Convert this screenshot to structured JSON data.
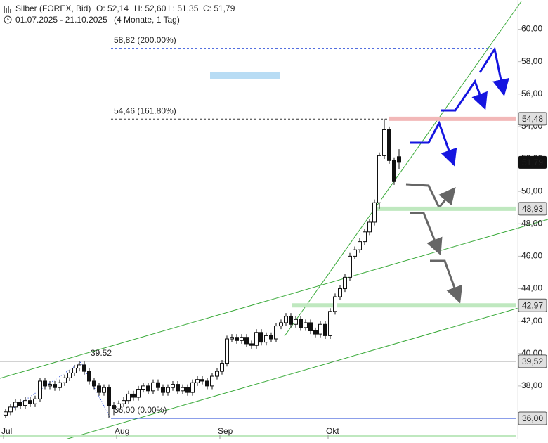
{
  "chart_data": {
    "type": "candlestick",
    "header": {
      "title": "Silber (FOREX, Bid)",
      "open": "O: 52,14",
      "high": "H: 52,60",
      "low": "L: 51,35",
      "close": "C: 51,79",
      "range": "01.07.2025 - 21.10.2025",
      "span": "(4 Monate, 1 Tag)"
    },
    "categories": [
      "Jul",
      null,
      null,
      null,
      null,
      null,
      null,
      null,
      null,
      null,
      null,
      null,
      null,
      null,
      null,
      null,
      null,
      null,
      null,
      null,
      null,
      null,
      null,
      "Aug",
      null,
      null,
      null,
      null,
      null,
      null,
      null,
      null,
      null,
      null,
      null,
      null,
      null,
      null,
      null,
      null,
      null,
      null,
      null,
      null,
      "Sep",
      null,
      null,
      null,
      null,
      null,
      null,
      null,
      null,
      null,
      null,
      null,
      null,
      null,
      null,
      null,
      null,
      null,
      null,
      null,
      null,
      null,
      "Okt",
      null,
      null,
      null,
      null,
      null,
      null,
      null,
      null,
      null,
      null,
      null,
      null,
      null,
      null
    ],
    "open": [
      36.2,
      36.4,
      36.7,
      37.0,
      36.8,
      37.1,
      36.9,
      37.2,
      38.3,
      38.0,
      38.1,
      37.9,
      38.2,
      38.5,
      38.8,
      39.1,
      39.3,
      38.9,
      38.3,
      38.0,
      37.6,
      37.9,
      36.8,
      36.6,
      36.9,
      37.1,
      37.5,
      37.3,
      37.8,
      38.0,
      37.7,
      38.2,
      37.9,
      37.6,
      37.9,
      38.1,
      37.7,
      37.9,
      37.6,
      38.2,
      38.4,
      38.3,
      38.0,
      38.6,
      38.9,
      39.4,
      40.9,
      41.0,
      40.8,
      41.0,
      40.6,
      40.5,
      41.3,
      40.7,
      41.1,
      40.9,
      41.7,
      41.9,
      42.3,
      41.8,
      42.1,
      41.6,
      41.9,
      41.4,
      41.2,
      41.8,
      41.1,
      42.6,
      43.5,
      44.0,
      44.7,
      46.0,
      46.4,
      46.9,
      47.5,
      48.1,
      49.3,
      52.2,
      53.8,
      51.9,
      52.14
    ],
    "high": [
      36.6,
      36.9,
      37.2,
      37.2,
      37.3,
      37.3,
      37.4,
      38.5,
      38.5,
      38.3,
      38.3,
      38.4,
      38.7,
      39.0,
      39.3,
      39.52,
      39.5,
      39.1,
      38.5,
      38.2,
      38.1,
      38.1,
      37.0,
      37.1,
      37.3,
      37.7,
      37.7,
      38.0,
      38.2,
      38.2,
      38.4,
      38.4,
      38.1,
      38.1,
      38.3,
      38.3,
      38.1,
      38.1,
      38.4,
      38.6,
      38.6,
      38.5,
      38.8,
      39.1,
      39.6,
      41.1,
      41.2,
      41.2,
      41.2,
      41.2,
      40.8,
      41.5,
      41.5,
      41.3,
      41.3,
      41.9,
      42.1,
      42.5,
      42.5,
      42.3,
      42.3,
      42.1,
      42.1,
      41.6,
      42.0,
      42.0,
      42.8,
      43.7,
      44.2,
      44.9,
      46.2,
      46.6,
      47.1,
      47.7,
      48.3,
      49.5,
      52.4,
      54.48,
      54.0,
      52.1,
      52.6
    ],
    "low": [
      36.0,
      36.2,
      36.5,
      36.6,
      36.6,
      36.7,
      36.7,
      37.0,
      37.8,
      37.8,
      37.7,
      37.7,
      38.0,
      38.3,
      38.6,
      38.9,
      38.7,
      38.1,
      37.8,
      37.4,
      37.4,
      36.0,
      36.2,
      36.4,
      36.7,
      36.9,
      37.1,
      37.1,
      37.6,
      37.5,
      37.5,
      37.7,
      37.4,
      37.4,
      37.7,
      37.5,
      37.5,
      37.4,
      37.4,
      38.0,
      38.1,
      37.8,
      37.8,
      38.4,
      38.7,
      39.2,
      40.7,
      40.6,
      40.6,
      40.4,
      40.3,
      40.3,
      40.5,
      40.5,
      40.7,
      40.7,
      41.5,
      41.7,
      41.6,
      41.6,
      41.4,
      41.4,
      41.2,
      41.0,
      41.0,
      40.9,
      40.9,
      42.4,
      43.3,
      43.8,
      44.5,
      45.8,
      46.2,
      46.7,
      47.3,
      47.9,
      48.93,
      52.0,
      51.7,
      50.4,
      51.35
    ],
    "close": [
      36.4,
      36.7,
      37.0,
      36.8,
      37.1,
      36.9,
      37.2,
      38.3,
      38.0,
      38.1,
      37.9,
      38.2,
      38.5,
      38.8,
      39.1,
      39.3,
      38.9,
      38.3,
      38.0,
      37.6,
      37.9,
      36.8,
      36.6,
      36.9,
      37.1,
      37.5,
      37.3,
      37.8,
      38.0,
      37.7,
      38.2,
      37.9,
      37.6,
      37.9,
      38.1,
      37.7,
      37.9,
      37.6,
      38.2,
      38.4,
      38.3,
      38.0,
      38.6,
      38.9,
      39.4,
      40.9,
      41.0,
      40.8,
      41.0,
      40.6,
      40.5,
      41.3,
      40.7,
      41.1,
      40.9,
      41.7,
      41.9,
      42.3,
      41.8,
      42.1,
      41.6,
      41.9,
      41.4,
      41.2,
      41.8,
      41.1,
      42.6,
      43.5,
      44.0,
      44.7,
      46.0,
      46.4,
      46.9,
      47.5,
      48.1,
      49.3,
      52.2,
      53.8,
      51.9,
      50.6,
      51.79
    ],
    "last_label": "51,79",
    "up_color": "#ffffff",
    "down_color": "#111111",
    "ylim": [
      34.7,
      61.8
    ],
    "yticks": [
      {
        "value": 36,
        "label": "36,00"
      },
      {
        "value": 38,
        "label": "38,00"
      },
      {
        "value": 40,
        "label": "40,00"
      },
      {
        "value": 42,
        "label": "42,00"
      },
      {
        "value": 44,
        "label": "44,00"
      },
      {
        "value": 46,
        "label": "46,00"
      },
      {
        "value": 48,
        "label": "48,00"
      },
      {
        "value": 50,
        "label": "50,00"
      },
      {
        "value": 52,
        "label": "52,00"
      },
      {
        "value": 54,
        "label": "54,00"
      },
      {
        "value": 56,
        "label": "56,00"
      },
      {
        "value": 58,
        "label": "58,00"
      },
      {
        "value": 60,
        "label": "60,00"
      }
    ],
    "levels": [
      {
        "value": 54.48,
        "label": "54,48",
        "color": "#f2b8b8"
      },
      {
        "value": 48.93,
        "label": "48,93",
        "color": "#bfe8bf"
      },
      {
        "value": 42.97,
        "label": "42,97",
        "color": "#bfe8bf"
      },
      {
        "value": 39.52,
        "label": "39,52",
        "color": "#888888"
      },
      {
        "value": 36.0,
        "label": "36,00",
        "color": "#1a3fd6"
      }
    ],
    "fib": [
      {
        "value": 58.82,
        "label": "58,82 (200.00%)",
        "color": "#1a3fd6"
      },
      {
        "value": 54.46,
        "label": "54,46 (161.80%)",
        "color": "#333333"
      },
      {
        "value": 39.52,
        "label": "39.52",
        "color": "#1a3fd6"
      },
      {
        "value": 36.0,
        "label": "36,00 (0.00%)",
        "color": "#1a3fd6"
      }
    ]
  }
}
